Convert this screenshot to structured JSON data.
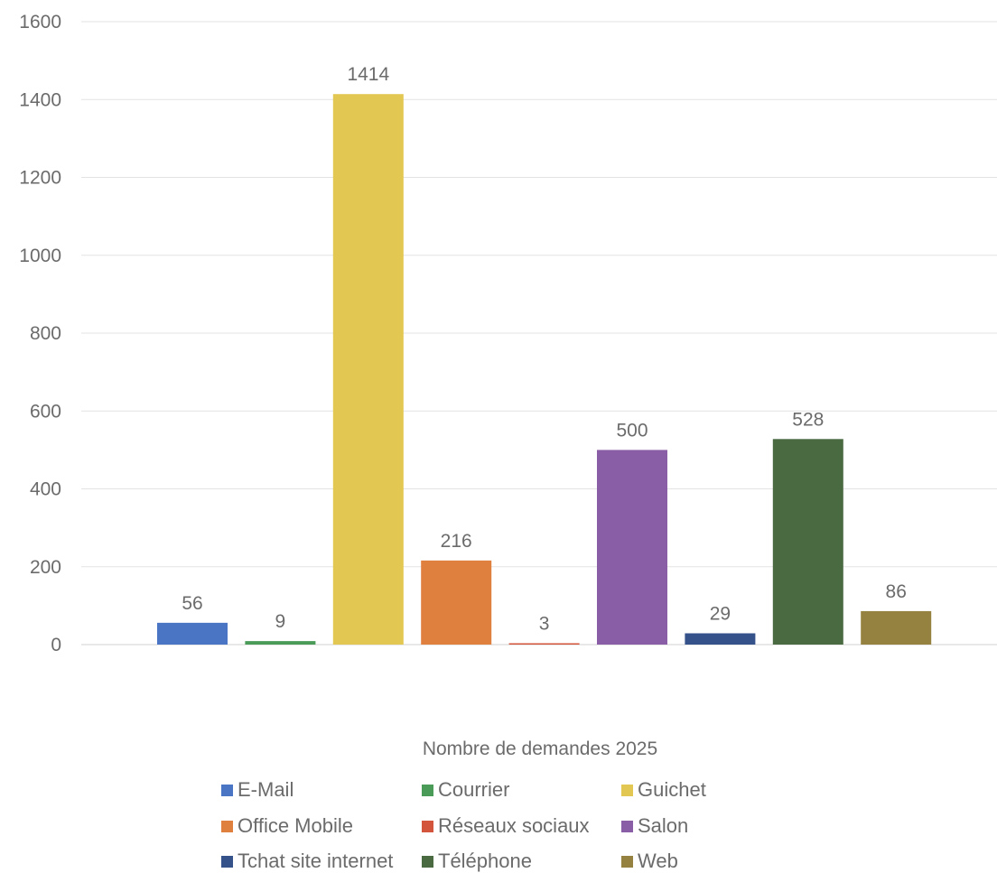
{
  "chart_data": {
    "type": "bar",
    "categories": [
      "E-Mail",
      "Courrier",
      "Guichet",
      "Office Mobile",
      "Réseaux sociaux",
      "Salon",
      "Tchat site internet",
      "Téléphone",
      "Web"
    ],
    "values": [
      56,
      9,
      1414,
      216,
      3,
      500,
      29,
      528,
      86
    ],
    "colors": [
      "#4a74c4",
      "#4a9a58",
      "#e2c752",
      "#e0803f",
      "#d3553b",
      "#8a5ea6",
      "#35528a",
      "#4a6a42",
      "#958240"
    ],
    "xlabel": "Nombre de demandes 2025",
    "ylabel": "",
    "ylim": [
      0,
      1600
    ],
    "yticks": [
      0,
      200,
      400,
      600,
      800,
      1000,
      1200,
      1400,
      1600
    ],
    "grid": true,
    "legend_position": "bottom"
  }
}
